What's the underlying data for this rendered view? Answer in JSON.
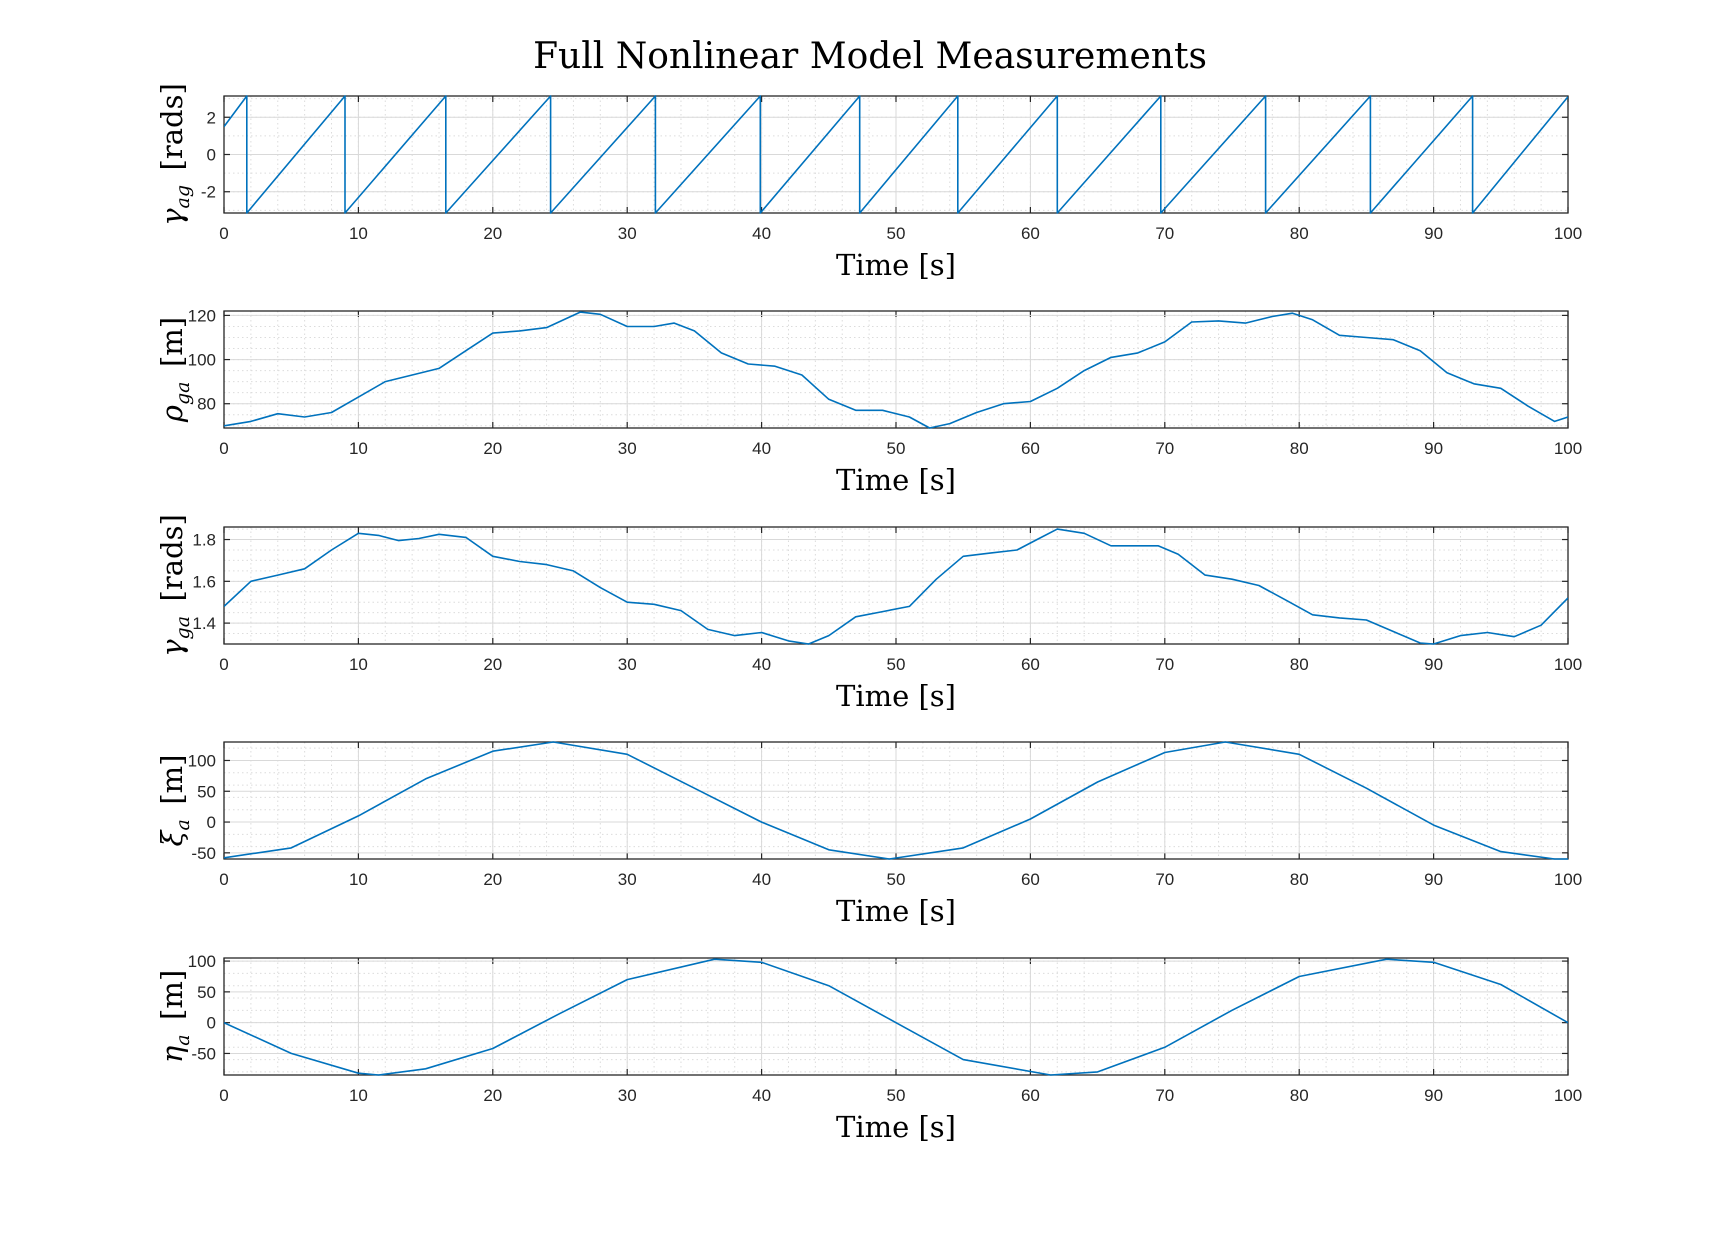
{
  "figure": {
    "title": "Full Nonlinear Model Measurements"
  },
  "colors": {
    "series": "#0072BD",
    "axis": "#262626"
  },
  "chart_data": [
    {
      "type": "line",
      "title": "",
      "xlabel": "Time [s]",
      "ylabel": {
        "symbol": "γ",
        "subscript": "ag",
        "unit": "[rads]"
      },
      "xlim": [
        0,
        100
      ],
      "ylim": [
        -3.1416,
        3.1416
      ],
      "xticks": [
        "0",
        "10",
        "20",
        "30",
        "40",
        "50",
        "60",
        "70",
        "80",
        "90",
        "100"
      ],
      "yticks": [
        "-2",
        "0",
        "2"
      ],
      "ytick_values": [
        -2,
        0,
        2
      ],
      "grid": true,
      "series": [
        {
          "x": [
            0,
            1.7,
            1.7,
            9.0,
            9.0,
            16.5,
            16.5,
            24.3,
            24.3,
            32.1,
            32.1,
            39.9,
            39.9,
            47.3,
            47.3,
            54.6,
            54.6,
            62.0,
            62.0,
            69.7,
            69.7,
            77.5,
            77.5,
            85.3,
            85.3,
            92.9,
            92.9,
            100
          ],
          "y": [
            1.5,
            3.1416,
            -3.1416,
            3.1416,
            -3.1416,
            3.1416,
            -3.1416,
            3.1416,
            -3.1416,
            3.1416,
            -3.1416,
            3.1416,
            -3.1416,
            3.1416,
            -3.1416,
            3.1416,
            -3.1416,
            3.1416,
            -3.1416,
            3.1416,
            -3.1416,
            3.1416,
            -3.1416,
            3.1416,
            -3.1416,
            3.1416,
            -3.1416,
            3.1
          ]
        }
      ]
    },
    {
      "type": "line",
      "title": "",
      "xlabel": "Time [s]",
      "ylabel": {
        "symbol": "ρ",
        "subscript": "ga",
        "unit": "[m]"
      },
      "xlim": [
        0,
        100
      ],
      "ylim": [
        69,
        122
      ],
      "xticks": [
        "0",
        "10",
        "20",
        "30",
        "40",
        "50",
        "60",
        "70",
        "80",
        "90",
        "100"
      ],
      "yticks": [
        "80",
        "100",
        "120"
      ],
      "ytick_values": [
        80,
        100,
        120
      ],
      "grid": true,
      "series": [
        {
          "x": [
            0,
            2,
            4,
            6,
            8,
            10,
            12,
            14,
            16,
            18,
            20,
            22,
            24,
            26.5,
            28,
            30,
            32,
            33.5,
            35,
            37,
            39,
            41,
            43,
            45,
            47,
            49,
            51,
            52.5,
            54,
            56,
            58,
            60,
            62,
            64,
            66,
            68,
            70,
            72,
            74,
            76,
            78,
            79.5,
            81,
            83,
            85,
            87,
            89,
            91,
            93,
            95,
            97,
            99,
            100
          ],
          "y": [
            70,
            72,
            75.5,
            74,
            76,
            83,
            90,
            93,
            96,
            104,
            112,
            113,
            114.5,
            121.5,
            120.5,
            115,
            115,
            116.5,
            113,
            103,
            98,
            97,
            93,
            82,
            77,
            77,
            74,
            69,
            71,
            76,
            80,
            81,
            87,
            95,
            101,
            103,
            108,
            117,
            117.5,
            116.5,
            119.5,
            121,
            118,
            111,
            110,
            109,
            104,
            94,
            89,
            87,
            79,
            72,
            74
          ]
        }
      ]
    },
    {
      "type": "line",
      "title": "",
      "xlabel": "Time [s]",
      "ylabel": {
        "symbol": "γ",
        "subscript": "ga",
        "unit": "[rads]"
      },
      "xlim": [
        0,
        100
      ],
      "ylim": [
        1.3,
        1.86
      ],
      "xticks": [
        "0",
        "10",
        "20",
        "30",
        "40",
        "50",
        "60",
        "70",
        "80",
        "90",
        "100"
      ],
      "yticks": [
        "1.4",
        "1.6",
        "1.8"
      ],
      "ytick_values": [
        1.4,
        1.6,
        1.8
      ],
      "grid": true,
      "series": [
        {
          "x": [
            0,
            2,
            4,
            6,
            8,
            10,
            11.5,
            13,
            14.5,
            16,
            18,
            20,
            22,
            24,
            26,
            28,
            30,
            32,
            34,
            36,
            38,
            40,
            42,
            43.5,
            45,
            47,
            49,
            51,
            53,
            55,
            57,
            59,
            60.5,
            62,
            64,
            66,
            68,
            69.5,
            71,
            73,
            75,
            77,
            79,
            81,
            83,
            85,
            87,
            89,
            90,
            92,
            94,
            96,
            98,
            100
          ],
          "y": [
            1.48,
            1.6,
            1.63,
            1.66,
            1.75,
            1.83,
            1.82,
            1.795,
            1.805,
            1.825,
            1.81,
            1.72,
            1.695,
            1.68,
            1.65,
            1.57,
            1.5,
            1.49,
            1.46,
            1.37,
            1.34,
            1.355,
            1.315,
            1.3,
            1.34,
            1.43,
            1.455,
            1.48,
            1.61,
            1.72,
            1.735,
            1.75,
            1.8,
            1.85,
            1.83,
            1.77,
            1.77,
            1.77,
            1.73,
            1.63,
            1.61,
            1.58,
            1.51,
            1.44,
            1.425,
            1.415,
            1.36,
            1.305,
            1.3,
            1.34,
            1.355,
            1.335,
            1.39,
            1.52
          ]
        }
      ]
    },
    {
      "type": "line",
      "title": "",
      "xlabel": "Time [s]",
      "ylabel": {
        "symbol": "ξ",
        "subscript": "a",
        "unit": "[m]"
      },
      "xlim": [
        0,
        100
      ],
      "ylim": [
        -60,
        130
      ],
      "xticks": [
        "0",
        "10",
        "20",
        "30",
        "40",
        "50",
        "60",
        "70",
        "80",
        "90",
        "100"
      ],
      "yticks": [
        "-50",
        "0",
        "50",
        "100"
      ],
      "ytick_values": [
        -50,
        0,
        50,
        100
      ],
      "grid": true,
      "series": [
        {
          "x": [
            0,
            5,
            10,
            15,
            20,
            24.5,
            30,
            35,
            40,
            45,
            49.5,
            55,
            60,
            65,
            70,
            74.5,
            80,
            85,
            90,
            95,
            99,
            100
          ],
          "y": [
            -58,
            -42,
            10,
            70,
            115,
            130,
            110,
            55,
            0,
            -45,
            -60,
            -42,
            5,
            65,
            113,
            130,
            110,
            55,
            -5,
            -48,
            -60,
            -60
          ]
        }
      ]
    },
    {
      "type": "line",
      "title": "",
      "xlabel": "Time [s]",
      "ylabel": {
        "symbol": "η",
        "subscript": "a",
        "unit": "[m]"
      },
      "xlim": [
        0,
        100
      ],
      "ylim": [
        -85,
        105
      ],
      "xticks": [
        "0",
        "10",
        "20",
        "30",
        "40",
        "50",
        "60",
        "70",
        "80",
        "90",
        "100"
      ],
      "yticks": [
        "-50",
        "0",
        "50",
        "100"
      ],
      "ytick_values": [
        -50,
        0,
        50,
        100
      ],
      "grid": true,
      "series": [
        {
          "x": [
            0,
            5,
            10,
            11.5,
            15,
            20,
            25,
            30,
            36.5,
            40,
            45,
            50,
            55,
            61.5,
            65,
            70,
            75,
            80,
            86.5,
            90,
            95,
            100
          ],
          "y": [
            0,
            -50,
            -82,
            -85,
            -75,
            -42,
            15,
            70,
            103,
            98,
            60,
            0,
            -60,
            -85,
            -80,
            -40,
            20,
            75,
            103,
            98,
            62,
            0
          ]
        }
      ]
    }
  ]
}
